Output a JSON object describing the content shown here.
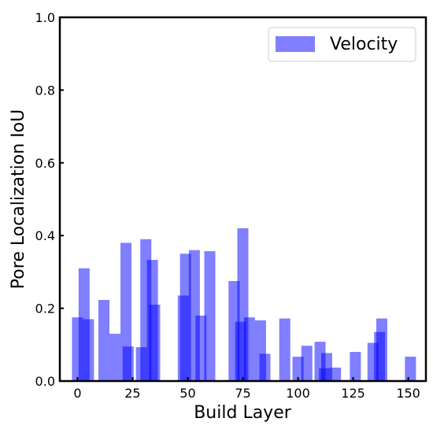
{
  "chart_data": {
    "type": "bar",
    "xlabel": "Build Layer",
    "ylabel": "Pore Localization IoU",
    "xlim": [
      -8,
      158
    ],
    "ylim": [
      0,
      1.0
    ],
    "xticks": [
      0,
      25,
      50,
      75,
      100,
      125,
      150
    ],
    "xtick_labels": [
      "0",
      "25",
      "50",
      "75",
      "100",
      "125",
      "150"
    ],
    "yticks": [
      0.0,
      0.2,
      0.4,
      0.6,
      0.8,
      1.0
    ],
    "ytick_labels": [
      "0.0",
      "0.2",
      "0.4",
      "0.6",
      "0.8",
      "1.0"
    ],
    "legend": {
      "label": "Velocity",
      "position": "top-right"
    },
    "bar_width": 5,
    "color": "#0000ff",
    "alpha": 0.5,
    "grid": false,
    "series": [
      {
        "name": "Velocity",
        "x": [
          0,
          3,
          5,
          12,
          17,
          22,
          23,
          29,
          31,
          34,
          35,
          48,
          49,
          53,
          56,
          60,
          71,
          74,
          75,
          78,
          83,
          85,
          94,
          100,
          104,
          110,
          112,
          113,
          117,
          126,
          134,
          137,
          138,
          151
        ],
        "values": [
          0.175,
          0.31,
          0.17,
          0.223,
          0.13,
          0.38,
          0.095,
          0.093,
          0.39,
          0.333,
          0.21,
          0.235,
          0.35,
          0.36,
          0.18,
          0.357,
          0.275,
          0.163,
          0.42,
          0.175,
          0.167,
          0.075,
          0.172,
          0.067,
          0.097,
          0.108,
          0.035,
          0.077,
          0.037,
          0.08,
          0.105,
          0.135,
          0.172,
          0.067
        ]
      }
    ]
  }
}
